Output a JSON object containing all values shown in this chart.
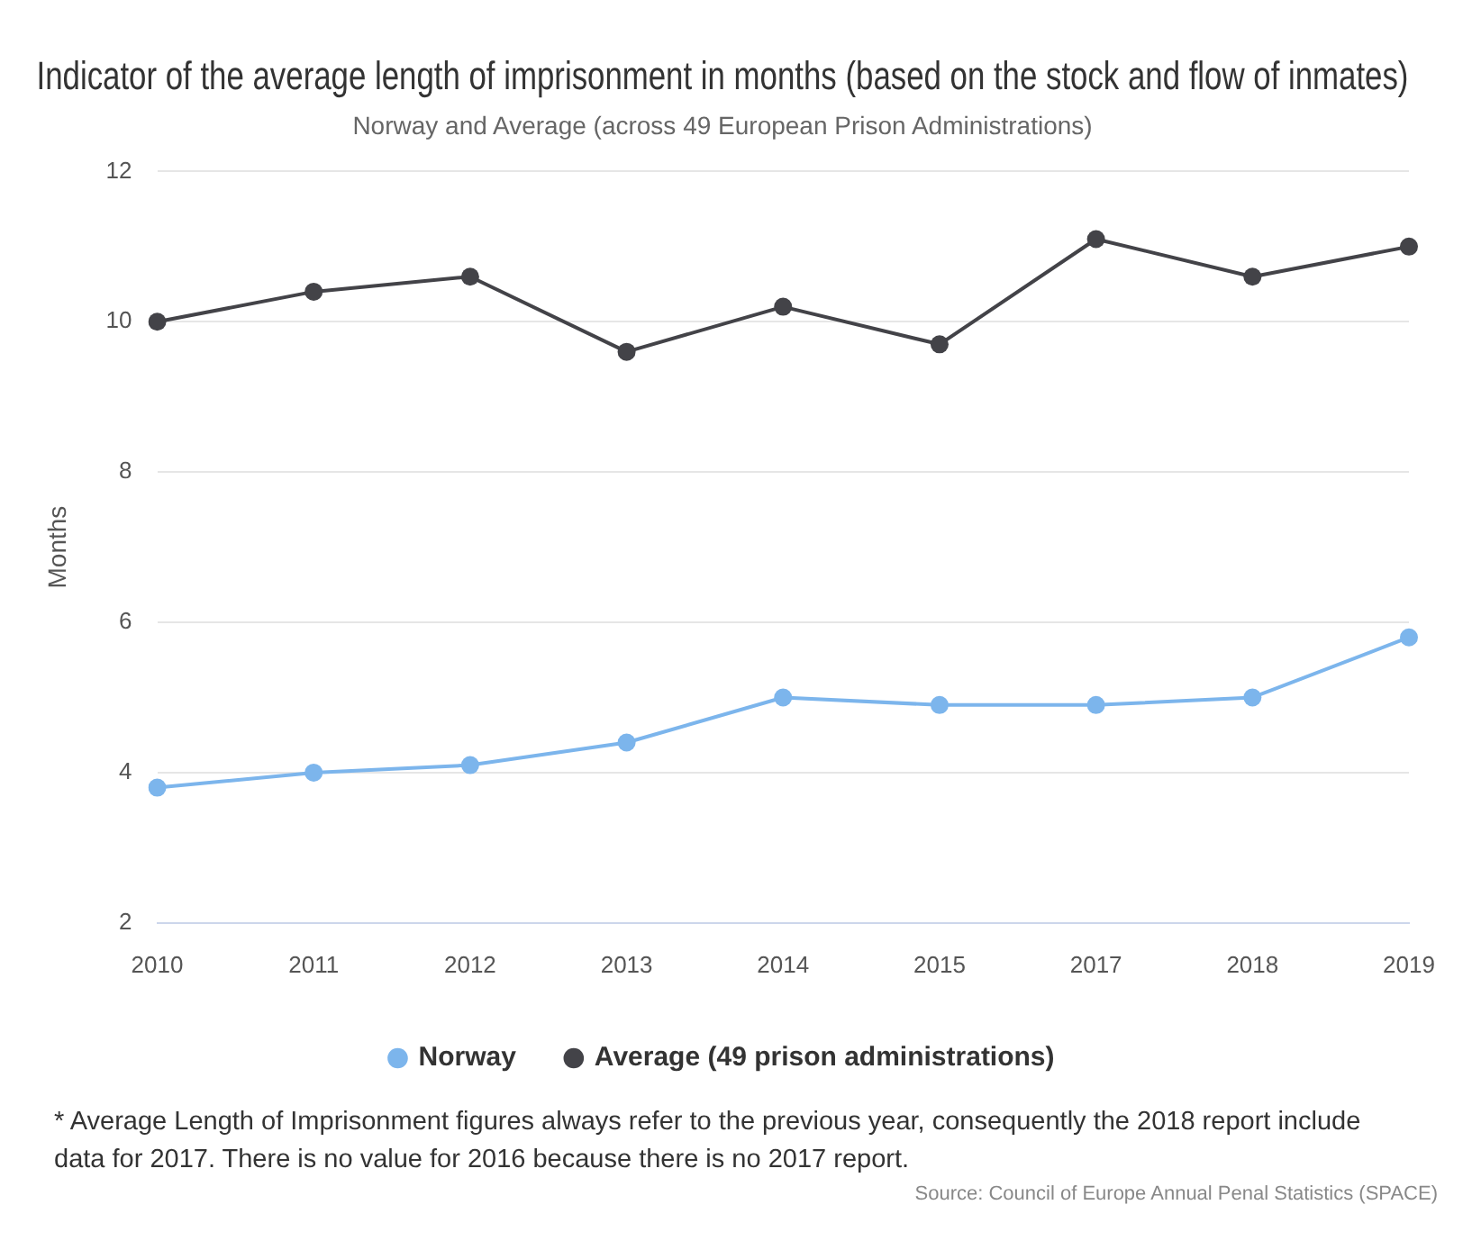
{
  "chart_data": {
    "type": "line",
    "title": "Indicator of the average length of imprisonment in months (based on the stock and flow of inmates)",
    "subtitle": "Norway and Average (across 49 European Prison Administrations)",
    "ylabel": "Months",
    "categories": [
      "2010",
      "2011",
      "2012",
      "2013",
      "2014",
      "2015",
      "2017",
      "2018",
      "2019"
    ],
    "series": [
      {
        "name": "Norway",
        "color": "#7cb5ec",
        "values": [
          3.8,
          4.0,
          4.1,
          4.4,
          5.0,
          4.9,
          4.9,
          5.0,
          5.8
        ]
      },
      {
        "name": "Average (49 prison administrations)",
        "color": "#434348",
        "values": [
          10.0,
          10.4,
          10.6,
          9.6,
          10.2,
          9.7,
          11.1,
          10.6,
          11.0
        ]
      }
    ],
    "ylim": [
      2,
      12
    ],
    "yticks": [
      2,
      4,
      6,
      8,
      10,
      12
    ],
    "grid": "y",
    "legend": "bottom",
    "marker": "circle",
    "line_style": "solid",
    "annotations": [
      "* Average Length of Imprisonment figures always refer to the previous year, consequently the 2018 report include data for 2017. There is no value for 2016 because there is no 2017 report.",
      "Source: Council of Europe Annual Penal Statistics (SPACE)"
    ]
  }
}
